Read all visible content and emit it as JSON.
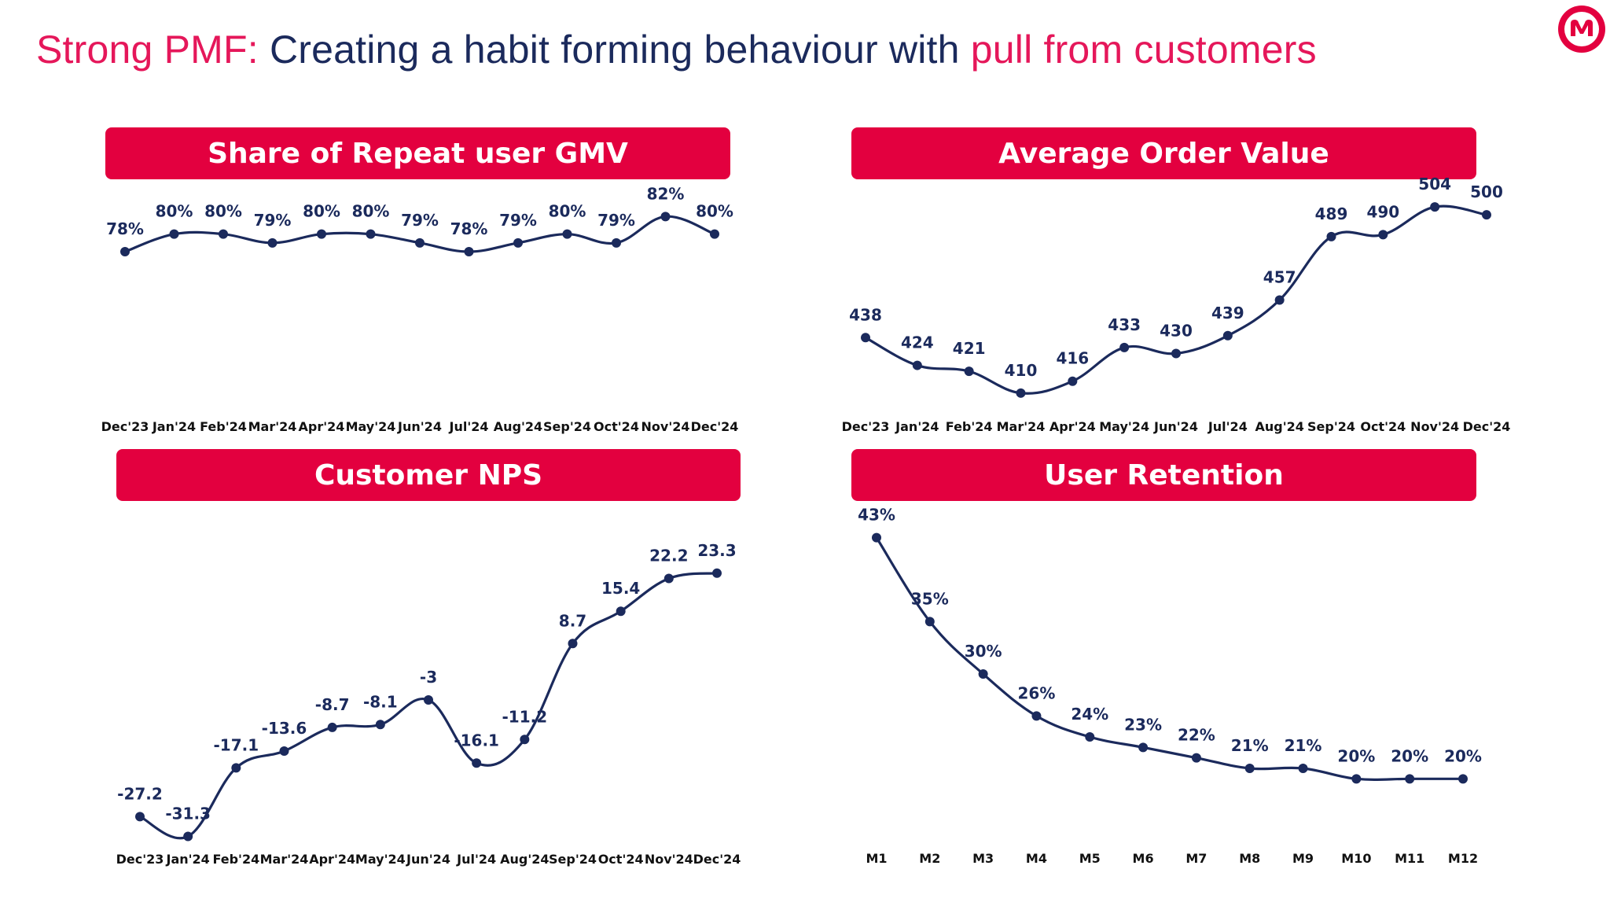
{
  "header": {
    "title_part1": "Strong PMF:",
    "title_part2": "Creating a habit forming behaviour with",
    "title_part3": "pull from customers",
    "accent_color": "#e5175a",
    "text_color": "#1b2a5c"
  },
  "logo_icon": "brand-logo-icon",
  "colors": {
    "banner": "#e3003f",
    "line": "#1b2a5c"
  },
  "chart_data": [
    {
      "type": "line",
      "title": "Share of Repeat user GMV",
      "categories": [
        "Dec'23",
        "Jan'24",
        "Feb'24",
        "Mar'24",
        "Apr'24",
        "May'24",
        "Jun'24",
        "Jul'24",
        "Aug'24",
        "Sep'24",
        "Oct'24",
        "Nov'24",
        "Dec'24"
      ],
      "values": [
        78,
        80,
        80,
        79,
        80,
        80,
        79,
        78,
        79,
        80,
        79,
        82,
        80
      ],
      "labels": [
        "78%",
        "80%",
        "80%",
        "79%",
        "80%",
        "80%",
        "79%",
        "78%",
        "79%",
        "80%",
        "79%",
        "82%",
        "80%"
      ],
      "ylim": [
        60,
        84
      ]
    },
    {
      "type": "line",
      "title": "Average Order Value",
      "categories": [
        "Dec'23",
        "Jan'24",
        "Feb'24",
        "Mar'24",
        "Apr'24",
        "May'24",
        "Jun'24",
        "Jul'24",
        "Aug'24",
        "Sep'24",
        "Oct'24",
        "Nov'24",
        "Dec'24"
      ],
      "values": [
        438,
        424,
        421,
        410,
        416,
        433,
        430,
        439,
        457,
        489,
        490,
        504,
        500
      ],
      "labels": [
        "438",
        "424",
        "421",
        "410",
        "416",
        "433",
        "430",
        "439",
        "457",
        "489",
        "490",
        "504",
        "500"
      ],
      "ylim": [
        400,
        510
      ]
    },
    {
      "type": "line",
      "title": "Customer NPS",
      "categories": [
        "Dec'23",
        "Jan'24",
        "Feb'24",
        "Mar'24",
        "Apr'24",
        "May'24",
        "Jun'24",
        "Jul'24",
        "Aug'24",
        "Sep'24",
        "Oct'24",
        "Nov'24",
        "Dec'24"
      ],
      "values": [
        -27.2,
        -31.3,
        -17.1,
        -13.6,
        -8.7,
        -8.1,
        -3,
        -16.1,
        -11.2,
        8.7,
        15.4,
        22.2,
        23.3
      ],
      "labels": [
        "-27.2",
        "-31.3",
        "-17.1",
        "-13.6",
        "-8.7",
        "-8.1",
        "-3",
        "-16.1",
        "-11.2",
        "8.7",
        "15.4",
        "22.2",
        "23.3"
      ],
      "ylim": [
        -34,
        28
      ]
    },
    {
      "type": "line",
      "title": "User Retention",
      "categories": [
        "M1",
        "M2",
        "M3",
        "M4",
        "M5",
        "M6",
        "M7",
        "M8",
        "M9",
        "M10",
        "M11",
        "M12"
      ],
      "values": [
        43,
        35,
        30,
        26,
        24,
        23,
        22,
        21,
        21,
        20,
        20,
        20
      ],
      "labels": [
        "43%",
        "35%",
        "30%",
        "26%",
        "24%",
        "23%",
        "22%",
        "21%",
        "21%",
        "20%",
        "20%",
        "20%"
      ],
      "ylim": [
        15,
        45
      ]
    }
  ]
}
